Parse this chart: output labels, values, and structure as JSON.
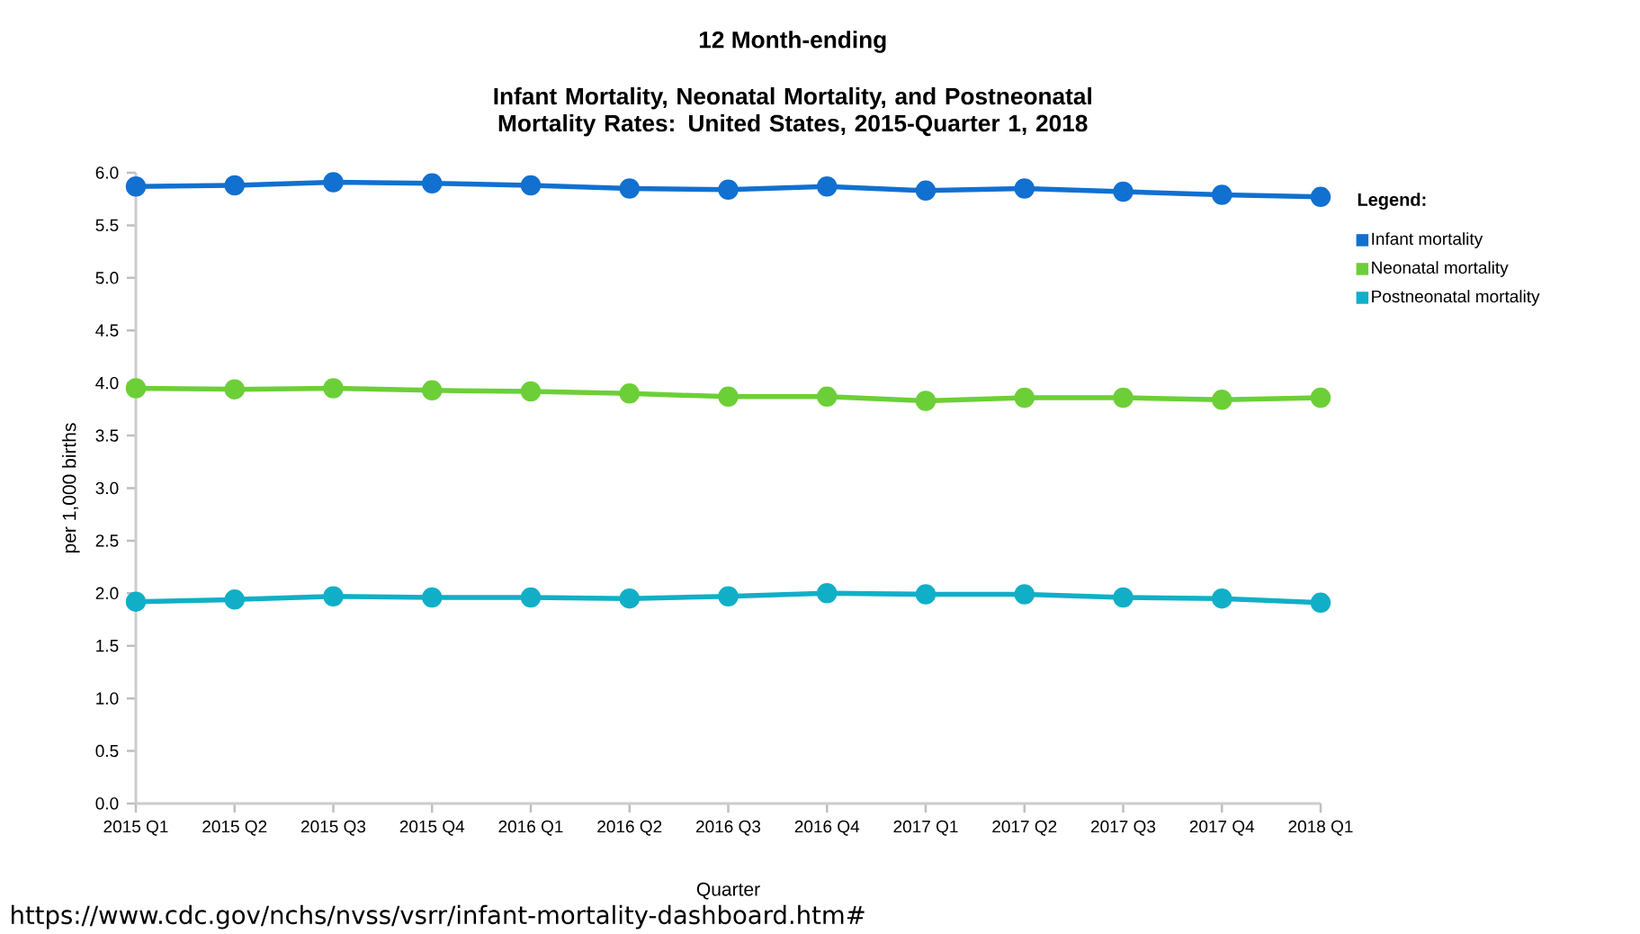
{
  "chart_data": {
    "type": "line",
    "title": "12 Month-ending",
    "subtitle": "Infant Mortality, Neonatal Mortality, and Postneonatal Mortality Rates: United States, 2015-Quarter 1, 2018",
    "xlabel": "Quarter",
    "ylabel": "per 1,000 births",
    "legend_title": "Legend:",
    "categories": [
      "2015 Q1",
      "2015 Q2",
      "2015 Q3",
      "2015 Q4",
      "2016 Q1",
      "2016 Q2",
      "2016 Q3",
      "2016 Q4",
      "2017 Q1",
      "2017 Q2",
      "2017 Q3",
      "2017 Q4",
      "2018 Q1"
    ],
    "series": [
      {
        "name": "Infant mortality",
        "color": "#1170d0",
        "values": [
          5.87,
          5.88,
          5.91,
          5.9,
          5.88,
          5.85,
          5.84,
          5.87,
          5.83,
          5.85,
          5.82,
          5.79,
          5.77
        ]
      },
      {
        "name": "Neonatal mortality",
        "color": "#6ccf37",
        "values": [
          3.95,
          3.94,
          3.95,
          3.93,
          3.92,
          3.9,
          3.87,
          3.87,
          3.83,
          3.86,
          3.86,
          3.84,
          3.86
        ]
      },
      {
        "name": "Postneonatal mortality",
        "color": "#11afc7",
        "values": [
          1.92,
          1.94,
          1.97,
          1.96,
          1.96,
          1.95,
          1.97,
          2.0,
          1.99,
          1.99,
          1.96,
          1.95,
          1.91
        ]
      }
    ],
    "ylim": [
      0,
      6
    ],
    "yticks": [
      {
        "value": 0,
        "label": "0.0"
      },
      {
        "value": 0.5,
        "label": "0.5"
      },
      {
        "value": 1,
        "label": "1.0"
      },
      {
        "value": 1.5,
        "label": "1.5"
      },
      {
        "value": 2,
        "label": "2.0"
      },
      {
        "value": 2.5,
        "label": "2.5"
      },
      {
        "value": 3,
        "label": "3.0"
      },
      {
        "value": 3.5,
        "label": "3.5"
      },
      {
        "value": 4,
        "label": "4.0"
      },
      {
        "value": 4.5,
        "label": "4.5"
      },
      {
        "value": 5,
        "label": "5.0"
      },
      {
        "value": 5.5,
        "label": "5.5"
      },
      {
        "value": 6,
        "label": "6.0"
      }
    ],
    "grid": false,
    "legend": "top right",
    "marker": "circle",
    "line_style": "solid",
    "annotations": [
      "https://www.cdc.gov/nchs/nvss/vsrr/infant-mortality-dashboard.htm#"
    ]
  }
}
